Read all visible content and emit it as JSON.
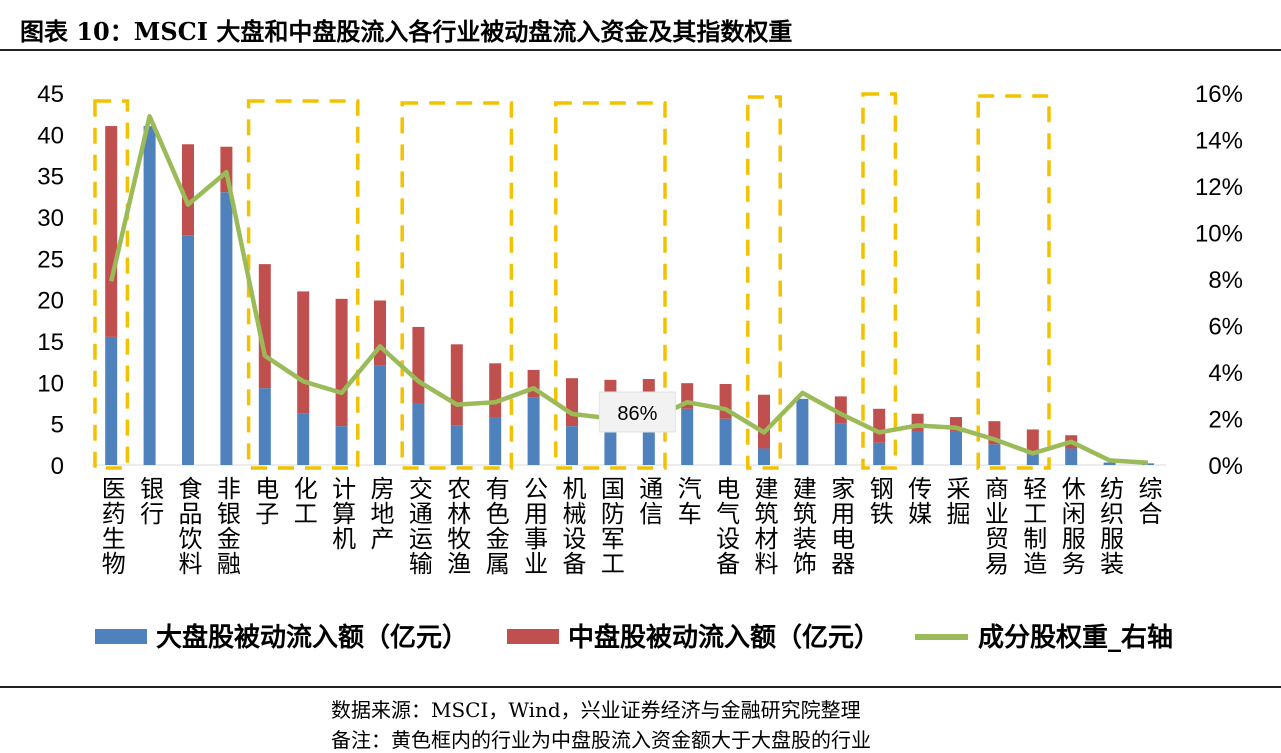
{
  "header": {
    "title": "图表 10：MSCI 大盘和中盘股流入各行业被动盘流入资金及其指数权重"
  },
  "colors": {
    "large_cap": "#4f81bd",
    "mid_cap": "#c0504d",
    "weight_line": "#9bbb59",
    "highlight_box": "#f2c200"
  },
  "chart_data": {
    "type": "bar",
    "stacked": true,
    "categories": [
      "医药生物",
      "银行",
      "食品饮料",
      "非银金融",
      "电子",
      "化工",
      "计算机",
      "房地产",
      "交通运输",
      "农林牧渔",
      "有色金属",
      "公用事业",
      "机械设备",
      "国防军工",
      "通信",
      "汽车",
      "电气设备",
      "建筑材料",
      "建筑装饰",
      "家用电器",
      "钢铁",
      "传媒",
      "采掘",
      "商业贸易",
      "轻工制造",
      "休闲服务",
      "纺织服装",
      "综合"
    ],
    "series": [
      {
        "name": "大盘股被动流入额（亿元）",
        "type": "bar",
        "axis": "left",
        "values": [
          15.5,
          41.0,
          27.8,
          33.0,
          9.3,
          6.2,
          4.7,
          12.0,
          7.5,
          4.8,
          5.7,
          8.2,
          4.7,
          4.3,
          4.0,
          6.8,
          5.6,
          2.0,
          8.0,
          5.0,
          2.7,
          4.0,
          4.0,
          2.5,
          1.3,
          2.0,
          0.3,
          0.2
        ]
      },
      {
        "name": "中盘股被动流入额（亿元）",
        "type": "bar",
        "axis": "left",
        "values": [
          25.5,
          0.0,
          11.0,
          5.5,
          15.0,
          14.8,
          15.4,
          7.9,
          9.2,
          9.8,
          6.6,
          3.3,
          5.8,
          6.0,
          6.4,
          3.1,
          4.2,
          6.5,
          0.0,
          3.3,
          4.1,
          2.2,
          1.8,
          2.8,
          3.0,
          1.6,
          0.0,
          0.0
        ]
      },
      {
        "name": "成分股权重_右轴",
        "type": "line",
        "axis": "right",
        "values": [
          7.9,
          15.0,
          11.2,
          12.6,
          4.7,
          3.6,
          3.1,
          5.1,
          3.6,
          2.6,
          2.7,
          3.3,
          2.2,
          2.0,
          1.9,
          2.7,
          2.4,
          1.4,
          3.1,
          2.2,
          1.4,
          1.7,
          1.6,
          1.1,
          0.5,
          1.0,
          0.2,
          0.1
        ]
      }
    ],
    "left_axis": {
      "ticks": [
        "0",
        "5",
        "10",
        "15",
        "20",
        "25",
        "30",
        "35",
        "40",
        "45"
      ],
      "ylim": [
        0,
        45
      ]
    },
    "right_axis": {
      "ticks": [
        "0%",
        "2%",
        "4%",
        "6%",
        "8%",
        "10%",
        "12%",
        "14%",
        "16%"
      ],
      "ylim": [
        0,
        16
      ]
    },
    "highlight_groups": [
      {
        "from": "医药生物",
        "to": "医药生物"
      },
      {
        "from": "电子",
        "to": "计算机"
      },
      {
        "from": "交通运输",
        "to": "有色金属"
      },
      {
        "from": "机械设备",
        "to": "通信"
      },
      {
        "from": "建筑材料",
        "to": "建筑材料"
      },
      {
        "from": "钢铁",
        "to": "钢铁"
      },
      {
        "from": "商业贸易",
        "to": "轻工制造"
      }
    ],
    "annotation": {
      "text": "86%",
      "near": "国防军工"
    },
    "grid": false,
    "legend_position": "bottom"
  },
  "footer": {
    "source": "数据来源：MSCI，Wind，兴业证券经济与金融研究院整理",
    "note": "备注：黄色框内的行业为中盘股流入资金额大于大盘股的行业"
  }
}
